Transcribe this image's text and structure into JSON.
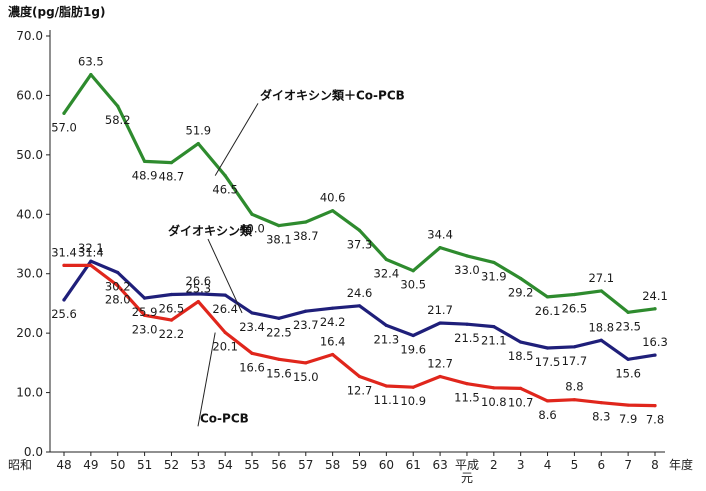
{
  "chart_data": {
    "type": "line",
    "ylabel": "濃度(pg/脂肪1g)",
    "xlabel": "年度",
    "ylim": [
      0,
      70
    ],
    "yticks": [
      "0.0",
      "10.0",
      "20.0",
      "30.0",
      "40.0",
      "50.0",
      "60.0",
      "70.0"
    ],
    "categories": [
      "48",
      "49",
      "50",
      "51",
      "52",
      "53",
      "54",
      "55",
      "56",
      "57",
      "58",
      "59",
      "60",
      "61",
      "63",
      "平成元",
      "2",
      "3",
      "4",
      "5",
      "6",
      "7",
      "8"
    ],
    "era_label": "昭和",
    "series": [
      {
        "name": "ダイオキシン類＋Co-PCB",
        "color": "#2e8b2e",
        "values": [
          57.0,
          63.5,
          58.2,
          48.9,
          48.7,
          51.9,
          46.5,
          40.0,
          38.1,
          38.7,
          40.6,
          37.3,
          32.4,
          30.5,
          34.4,
          33.0,
          31.9,
          29.2,
          26.1,
          26.5,
          27.1,
          23.5,
          24.1
        ],
        "labels": [
          "57.0",
          "63.5",
          "58.2",
          "48.9",
          "48.7",
          "51.9",
          "46.5",
          "40.0",
          "38.1",
          "38.7",
          "40.6",
          "37.3",
          "32.4",
          "30.5",
          "34.4",
          "33.0",
          "31.9",
          "29.2",
          "26.1",
          "26.5",
          "27.1",
          "23.5",
          "24.1"
        ]
      },
      {
        "name": "ダイオキシン類",
        "color": "#1f1f7a",
        "values": [
          25.6,
          32.1,
          30.2,
          25.9,
          26.5,
          26.6,
          26.4,
          23.4,
          22.5,
          23.7,
          24.2,
          24.6,
          21.3,
          19.6,
          21.7,
          21.5,
          21.1,
          18.5,
          17.5,
          17.7,
          18.8,
          15.6,
          16.3
        ],
        "labels": [
          "25.6",
          "32.1",
          "30.2",
          "25.9",
          "26.5",
          "26.6",
          "26.4",
          "23.4",
          "22.5",
          "23.7",
          "24.2",
          "24.6",
          "21.3",
          "19.6",
          "21.7",
          "21.5",
          "21.1",
          "18.5",
          "17.5",
          "17.7",
          "18.8",
          "15.6",
          "16.3"
        ]
      },
      {
        "name": "Co-PCB",
        "color": "#e0261c",
        "values": [
          31.4,
          31.4,
          28.0,
          23.0,
          22.2,
          25.3,
          20.1,
          16.6,
          15.6,
          15.0,
          16.4,
          12.7,
          11.1,
          10.9,
          12.7,
          11.5,
          10.8,
          10.7,
          8.6,
          8.8,
          8.3,
          7.9,
          7.8
        ],
        "labels": [
          "31.4",
          "31.4",
          "28.0",
          "23.0",
          "22.2",
          "25.3",
          "20.1",
          "16.6",
          "15.6",
          "15.0",
          "16.4",
          "12.7",
          "11.1",
          "10.9",
          "12.7",
          "11.5",
          "10.8",
          "10.7",
          "8.6",
          "8.8",
          "8.3",
          "7.9",
          "7.8"
        ]
      }
    ],
    "grid": false,
    "legend": "inline annotations"
  }
}
